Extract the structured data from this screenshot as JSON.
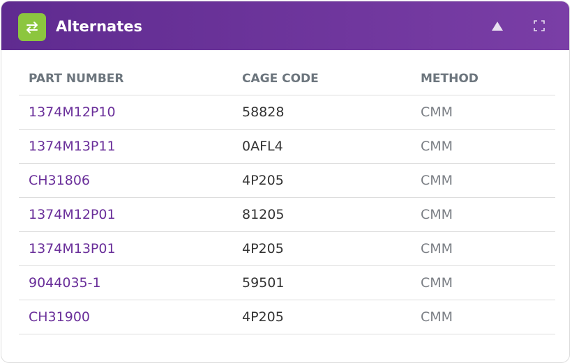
{
  "header": {
    "title": "Alternates"
  },
  "table": {
    "columns": [
      "PART NUMBER",
      "CAGE CODE",
      "METHOD"
    ],
    "rows": [
      [
        "1374M12P10",
        "58828",
        "CMM"
      ],
      [
        "1374M13P11",
        "0AFL4",
        "CMM"
      ],
      [
        "CH31806",
        "4P205",
        "CMM"
      ],
      [
        "1374M12P01",
        "81205",
        "CMM"
      ],
      [
        "1374M13P01",
        "4P205",
        "CMM"
      ],
      [
        "9044035-1",
        "59501",
        "CMM"
      ],
      [
        "CH31900",
        "4P205",
        "CMM"
      ]
    ]
  }
}
